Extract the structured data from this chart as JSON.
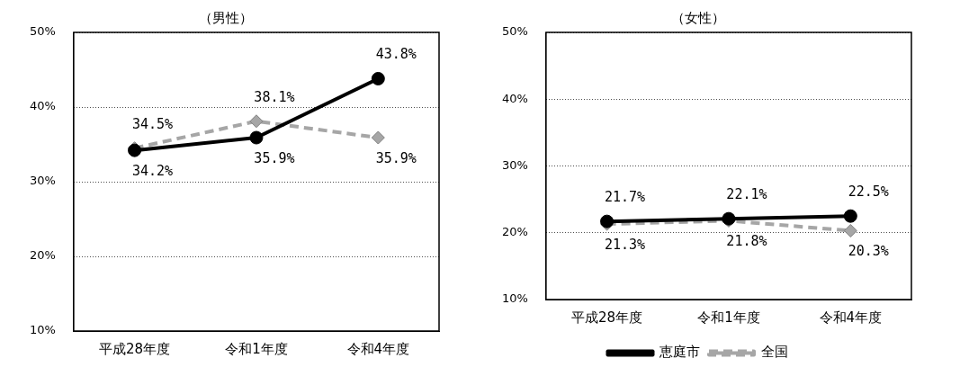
{
  "chart_data": [
    {
      "type": "line",
      "title": "（男性）",
      "categories": [
        "平成28年度",
        "令和1年度",
        "令和4年度"
      ],
      "ylim": [
        10,
        50
      ],
      "yticks": [
        {
          "value": 10,
          "label": "10%"
        },
        {
          "value": 20,
          "label": "20%"
        },
        {
          "value": 30,
          "label": "30%"
        },
        {
          "value": 40,
          "label": "40%"
        },
        {
          "value": 50,
          "label": "50%"
        }
      ],
      "grid": "y",
      "legend": false,
      "series": [
        {
          "color": "#000000",
          "values": [
            34.2,
            35.9,
            43.8
          ],
          "marker": "circle",
          "line_style": "solid",
          "value_labels": [
            "34.2%",
            "35.9%",
            "43.8%"
          ]
        },
        {
          "color": "#a6a6a6",
          "values": [
            34.5,
            38.1,
            35.9
          ],
          "marker": "diamond",
          "line_style": "dashed",
          "value_labels": [
            "34.5%",
            "38.1%",
            "35.9%"
          ]
        }
      ]
    },
    {
      "type": "line",
      "title": "（女性）",
      "categories": [
        "平成28年度",
        "令和1年度",
        "令和4年度"
      ],
      "ylim": [
        10,
        50
      ],
      "yticks": [
        {
          "value": 10,
          "label": "10%"
        },
        {
          "value": 20,
          "label": "20%"
        },
        {
          "value": 30,
          "label": "30%"
        },
        {
          "value": 40,
          "label": "40%"
        },
        {
          "value": 50,
          "label": "50%"
        }
      ],
      "grid": "y",
      "legend": "bottom",
      "series": [
        {
          "name": "恵庭市",
          "color": "#000000",
          "values": [
            21.7,
            22.1,
            22.5
          ],
          "marker": "circle",
          "line_style": "solid",
          "value_labels": [
            "21.7%",
            "22.1%",
            "22.5%"
          ]
        },
        {
          "name": "全国",
          "color": "#a6a6a6",
          "values": [
            21.3,
            21.8,
            20.3
          ],
          "marker": "diamond",
          "line_style": "dashed",
          "value_labels": [
            "21.3%",
            "21.8%",
            "20.3%"
          ]
        }
      ]
    }
  ]
}
